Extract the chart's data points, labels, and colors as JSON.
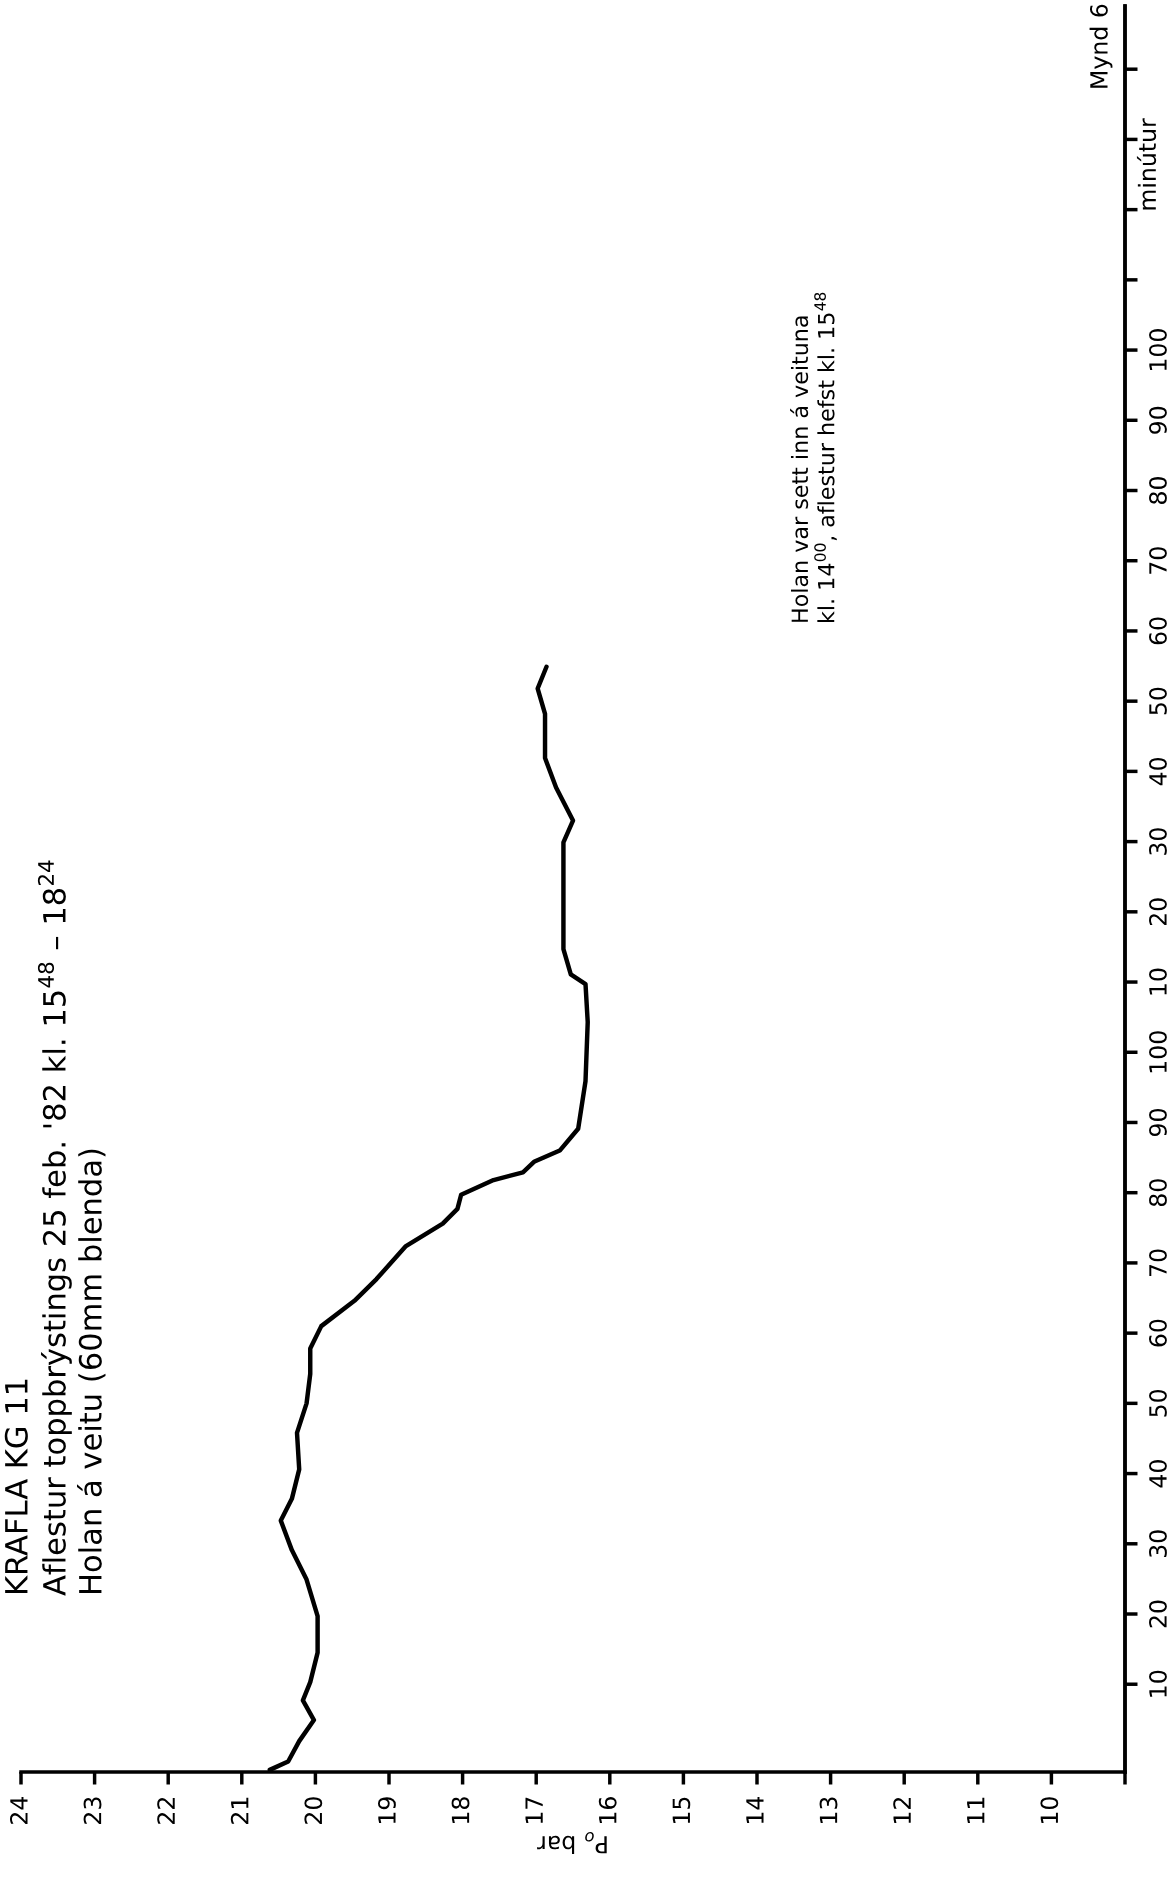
{
  "chart_data": {
    "type": "line",
    "orientation": "horizontal",
    "title": "KRAFLA KG 11",
    "subtitle": "Aflestur toppbrýstings 25 feb. '82 kl. 15$^{48}$ – 18$^{24}$",
    "annotations": [
      "Holan á veitu (60mm blenda)",
      "Holan var sett inn á veituna\nkl. 14$^{00}$, aflestur hefst kl. 15$^{48}$",
      "Mynd 6"
    ],
    "xlabel": "P$_{o}$ bar",
    "y2label": "minútur",
    "series": [
      {
        "color": "#000000",
        "x": [
          -2.2,
          -1.0,
          1.9,
          4.9,
          7.7,
          10.3,
          14.5,
          19.7,
          24.9,
          29.1,
          33.3,
          36.4,
          40.6,
          45.8,
          50.0,
          54.2,
          57.8,
          61.0,
          64.6,
          67.7,
          72.4,
          75.6,
          77.7,
          79.7,
          81.8,
          82.9,
          84.4,
          86.0,
          89.1,
          95.9,
          104.3,
          109.7,
          111.1,
          114.7,
          124.1,
          129.9,
          133.0,
          137.7,
          141.9,
          148.2,
          151.8,
          154.9
        ],
        "values": [
          20.62,
          20.37,
          20.22,
          20.02,
          20.17,
          20.07,
          19.97,
          19.97,
          20.12,
          20.32,
          20.47,
          20.32,
          20.22,
          20.25,
          20.12,
          20.07,
          20.07,
          19.92,
          19.47,
          19.17,
          18.77,
          18.27,
          18.07,
          18.02,
          17.58,
          17.18,
          17.03,
          16.68,
          16.43,
          16.33,
          16.3,
          16.33,
          16.53,
          16.63,
          16.63,
          16.63,
          16.5,
          16.73,
          16.88,
          16.88,
          16.98,
          16.86
        ]
      }
    ],
    "xlim": [
      24,
      9
    ],
    "xticks": [
      24,
      23,
      22,
      21,
      20,
      19,
      18,
      17,
      16,
      15,
      14,
      13,
      12,
      11,
      10,
      {
        "value": 9,
        "label": null
      }
    ],
    "ylim": [
      -2.5,
      249
    ],
    "yticks": [
      10,
      20,
      30,
      40,
      50,
      60,
      70,
      80,
      90,
      100
    ],
    "y2lim": [
      -102.5,
      149
    ],
    "y2ticks": [
      10,
      20,
      30,
      40,
      50,
      60,
      70,
      80,
      90,
      100,
      {
        "value": 110,
        "label": null
      },
      {
        "value": 120,
        "label": null
      },
      {
        "value": 130,
        "label": null
      },
      {
        "value": 140,
        "label": null
      }
    ],
    "grid": false,
    "legend": false
  }
}
